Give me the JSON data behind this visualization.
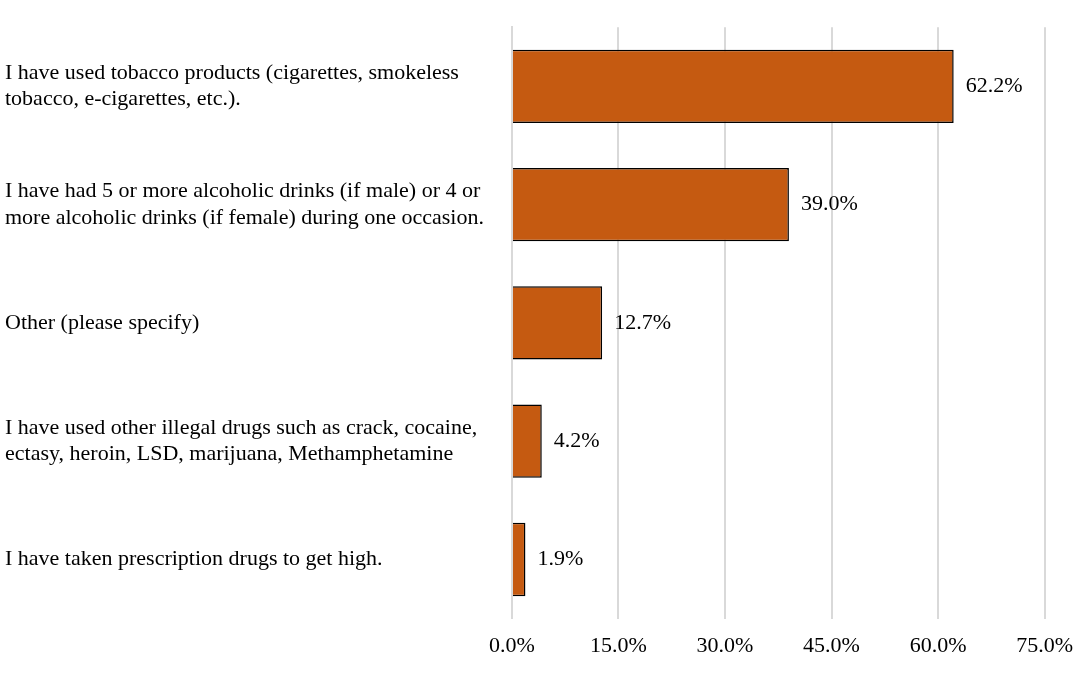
{
  "chart_data": {
    "type": "bar",
    "orientation": "horizontal",
    "categories": [
      "I have used tobacco products (cigarettes, smokeless tobacco, e-cigarettes, etc.).",
      "I have had 5 or more alcoholic drinks (if male) or 4 or more alcoholic drinks (if female) during one occasion.",
      "Other (please specify)",
      "I have used other illegal drugs such as crack, cocaine, ectasy, heroin, LSD, marijuana, Methamphetamine",
      "I have taken prescription drugs to get high."
    ],
    "values": [
      62.2,
      39.0,
      12.7,
      4.2,
      1.9
    ],
    "value_labels": [
      "62.2%",
      "39.0%",
      "12.7%",
      "4.2%",
      "1.9%"
    ],
    "color": "#c55a11",
    "xlim": [
      0,
      75
    ],
    "xticks": [
      {
        "value": 0,
        "label": "0.0%"
      },
      {
        "value": 15,
        "label": "15.0%"
      },
      {
        "value": 30,
        "label": "30.0%"
      },
      {
        "value": 45,
        "label": "45.0%"
      },
      {
        "value": 60,
        "label": "60.0%"
      },
      {
        "value": 75,
        "label": "75.0%"
      }
    ],
    "grid": "x"
  }
}
